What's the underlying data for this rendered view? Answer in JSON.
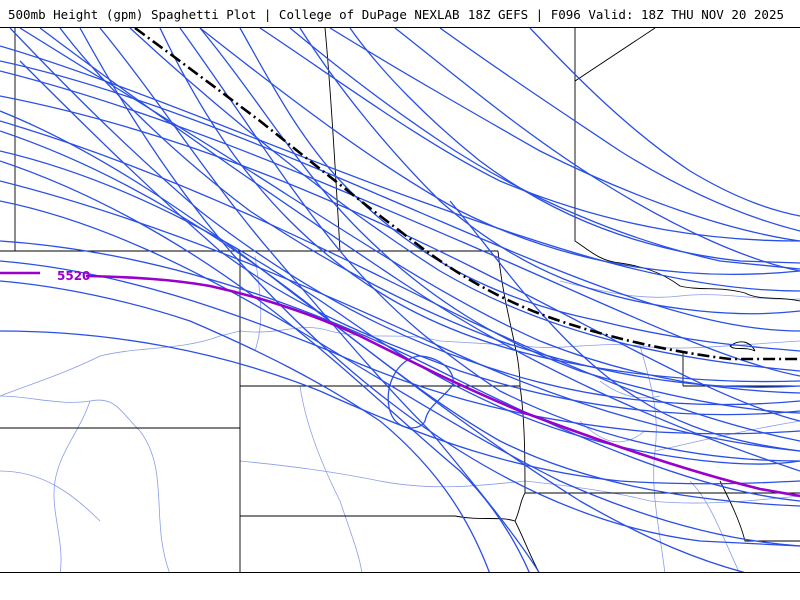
{
  "header": {
    "left_title": "500mb Height (gpm) Spaghetti Plot | College of DuPage NEXLAB",
    "right_title": "18Z GEFS | F096 Valid: 18Z THU NOV 20 2025"
  },
  "contour": {
    "label": "5520",
    "color": "#9900cc",
    "member_color": "#2a4fe6",
    "mean_color": "#000000"
  },
  "icons": {
    "borders": "state-border-lines",
    "roads": "highway-lines"
  }
}
